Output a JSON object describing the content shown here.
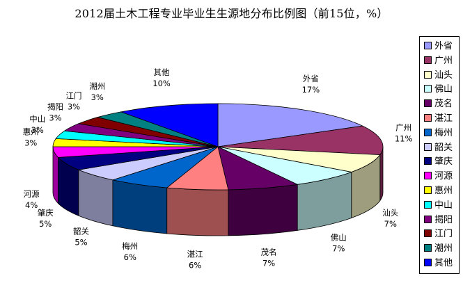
{
  "chart_data": {
    "type": "pie",
    "style": "3d-exploded",
    "title": "2012届土木工程专业毕业生生源地分布比例图（前15位，%）",
    "legend_position": "right",
    "slices": [
      {
        "name": "外省",
        "value": 17,
        "label": "17%",
        "color": "#9999ff"
      },
      {
        "name": "广州",
        "value": 11,
        "label": "11%",
        "color": "#993366"
      },
      {
        "name": "汕头",
        "value": 7,
        "label": "7%",
        "color": "#ffffcc"
      },
      {
        "name": "佛山",
        "value": 7,
        "label": "7%",
        "color": "#ccffff"
      },
      {
        "name": "茂名",
        "value": 7,
        "label": "7%",
        "color": "#660066"
      },
      {
        "name": "湛江",
        "value": 6,
        "label": "6%",
        "color": "#ff8080"
      },
      {
        "name": "梅州",
        "value": 6,
        "label": "6%",
        "color": "#0066cc"
      },
      {
        "name": "韶关",
        "value": 5,
        "label": "5%",
        "color": "#ccccff"
      },
      {
        "name": "肇庆",
        "value": 5,
        "label": "5%",
        "color": "#000080"
      },
      {
        "name": "河源",
        "value": 4,
        "label": "4%",
        "color": "#ff00ff"
      },
      {
        "name": "惠州",
        "value": 3,
        "label": "3%",
        "color": "#ffff00"
      },
      {
        "name": "中山",
        "value": 3,
        "label": "3%",
        "color": "#00ffff"
      },
      {
        "name": "揭阳",
        "value": 3,
        "label": "3%",
        "color": "#800080"
      },
      {
        "name": "江门",
        "value": 3,
        "label": "3%",
        "color": "#800000"
      },
      {
        "name": "潮州",
        "value": 3,
        "label": "3%",
        "color": "#008080"
      },
      {
        "name": "其他",
        "value": 10,
        "label": "10%",
        "color": "#0000ff"
      }
    ]
  }
}
